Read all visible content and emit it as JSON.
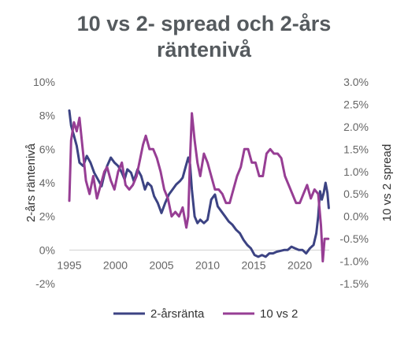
{
  "chart_data": {
    "type": "line",
    "title_line1": "10 vs 2- spread och 2-års",
    "title_line2": "räntenivå",
    "y_left_label": "2-års räntenivå",
    "y_right_label": "10 vs 2 spread",
    "x_ticks": [
      "1995",
      "2000",
      "2005",
      "2010",
      "2015",
      "2020"
    ],
    "y_left_ticks": [
      "-2%",
      "0%",
      "2%",
      "4%",
      "6%",
      "8%",
      "10%"
    ],
    "y_right_ticks": [
      "-1.5%",
      "-1.0%",
      "-0.5%",
      "0.0%",
      "0.5%",
      "1.0%",
      "1.5%",
      "2.0%",
      "2.5%",
      "3.0%"
    ],
    "xlim": [
      1995,
      2023.2
    ],
    "ylim_left": [
      -2,
      10
    ],
    "ylim_right": [
      -1.5,
      3.0
    ],
    "legend_position": "bottom",
    "series": [
      {
        "name": "2-årsränta",
        "axis": "left",
        "color": "#3c4383",
        "x": [
          1995.0,
          1995.2,
          1995.5,
          1995.8,
          1996.1,
          1996.5,
          1996.9,
          1997.3,
          1997.7,
          1998.1,
          1998.5,
          1998.8,
          1999.1,
          1999.5,
          1999.9,
          2000.3,
          2000.7,
          2001.0,
          2001.3,
          2001.7,
          2002.0,
          2002.4,
          2002.8,
          2003.2,
          2003.5,
          2003.9,
          2004.2,
          2004.6,
          2005.0,
          2005.4,
          2005.8,
          2006.2,
          2006.6,
          2007.0,
          2007.3,
          2007.6,
          2007.9,
          2008.1,
          2008.3,
          2008.6,
          2008.9,
          2009.2,
          2009.6,
          2010.0,
          2010.4,
          2010.8,
          2011.1,
          2011.5,
          2011.9,
          2012.3,
          2012.7,
          2013.1,
          2013.5,
          2013.9,
          2014.3,
          2014.7,
          2015.1,
          2015.5,
          2015.9,
          2016.3,
          2016.7,
          2017.1,
          2017.5,
          2017.9,
          2018.3,
          2018.7,
          2019.1,
          2019.5,
          2019.9,
          2020.3,
          2020.7,
          2021.1,
          2021.5,
          2021.8,
          2022.0,
          2022.2,
          2022.4,
          2022.6,
          2022.8,
          2023.0,
          2023.15
        ],
        "y": [
          8.3,
          7.4,
          6.8,
          6.2,
          5.2,
          5.0,
          5.6,
          5.2,
          4.6,
          4.2,
          3.8,
          4.5,
          5.0,
          5.5,
          5.2,
          5.0,
          4.6,
          4.2,
          4.8,
          4.6,
          4.1,
          4.8,
          4.4,
          3.6,
          4.0,
          3.8,
          3.2,
          2.8,
          2.2,
          2.8,
          3.3,
          3.6,
          3.9,
          4.1,
          4.3,
          4.9,
          5.5,
          5.1,
          3.6,
          2.0,
          1.6,
          1.8,
          1.6,
          1.8,
          3.0,
          3.3,
          2.6,
          2.3,
          2.0,
          1.7,
          1.5,
          1.2,
          1.0,
          0.6,
          0.3,
          0.1,
          -0.3,
          -0.4,
          -0.3,
          -0.4,
          -0.2,
          -0.2,
          -0.1,
          -0.05,
          0.0,
          0.0,
          0.2,
          0.1,
          0.0,
          0.0,
          -0.2,
          0.1,
          0.3,
          1.0,
          2.0,
          3.5,
          3.0,
          3.4,
          4.0,
          3.4,
          2.5
        ]
      },
      {
        "name": "10 vs 2",
        "axis": "right",
        "color": "#973e94",
        "x": [
          1995.0,
          1995.2,
          1995.5,
          1995.8,
          1996.1,
          1996.4,
          1996.8,
          1997.2,
          1997.6,
          1998.0,
          1998.4,
          1998.8,
          1999.1,
          1999.5,
          1999.9,
          2000.3,
          2000.7,
          2001.1,
          2001.5,
          2001.9,
          2002.3,
          2002.7,
          2003.0,
          2003.3,
          2003.7,
          2004.1,
          2004.5,
          2004.9,
          2005.3,
          2005.7,
          2006.1,
          2006.5,
          2006.9,
          2007.3,
          2007.7,
          2007.9,
          2008.1,
          2008.3,
          2008.6,
          2008.9,
          2009.2,
          2009.6,
          2010.0,
          2010.4,
          2010.8,
          2011.2,
          2011.6,
          2012.0,
          2012.4,
          2012.8,
          2013.2,
          2013.6,
          2014.0,
          2014.4,
          2014.8,
          2015.2,
          2015.6,
          2016.0,
          2016.4,
          2016.8,
          2017.2,
          2017.6,
          2018.0,
          2018.4,
          2018.8,
          2019.2,
          2019.6,
          2020.0,
          2020.4,
          2020.8,
          2021.2,
          2021.6,
          2022.0,
          2022.3,
          2022.5,
          2022.7,
          2022.9,
          2023.1
        ],
        "y": [
          0.35,
          1.7,
          2.1,
          1.9,
          2.2,
          1.6,
          0.8,
          0.5,
          0.9,
          0.4,
          0.7,
          1.0,
          1.1,
          0.8,
          0.6,
          1.0,
          1.2,
          0.7,
          0.6,
          0.7,
          0.9,
          1.3,
          1.6,
          1.8,
          1.5,
          1.5,
          1.3,
          1.0,
          0.6,
          0.4,
          0.0,
          0.1,
          0.0,
          0.2,
          -0.25,
          0.0,
          1.3,
          2.3,
          1.7,
          1.2,
          0.9,
          1.4,
          1.2,
          0.9,
          0.6,
          0.6,
          0.5,
          0.3,
          0.3,
          0.6,
          0.9,
          1.1,
          1.5,
          1.5,
          1.2,
          1.2,
          0.9,
          0.9,
          1.4,
          1.5,
          1.4,
          1.4,
          1.3,
          0.9,
          0.7,
          0.5,
          0.3,
          0.3,
          0.5,
          0.7,
          0.4,
          0.6,
          0.5,
          -0.2,
          -1.0,
          -0.5,
          -0.5,
          -0.5
        ]
      }
    ]
  }
}
